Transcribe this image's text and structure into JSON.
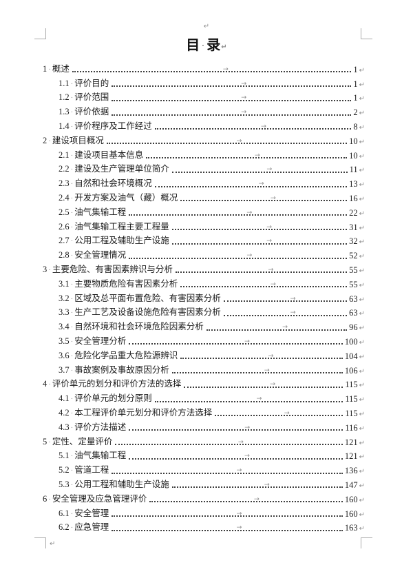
{
  "title": {
    "left": "目",
    "right": "录"
  },
  "marks": {
    "pilcrow": "↵",
    "tab_arrow": "→",
    "space_dot": "·"
  },
  "colors": {
    "text": "#1c1c1c",
    "formatting_marks": "#8f8f8f",
    "crop_marks": "#ababab",
    "leader_dots": "#3e3e3e",
    "background": "#ffffff"
  },
  "toc": [
    {
      "num": "1",
      "label": "概述",
      "page": "1",
      "level": 1
    },
    {
      "num": "1.1",
      "label": "评价目的",
      "page": "1",
      "level": 2
    },
    {
      "num": "1.2",
      "label": "评价范围",
      "page": "1",
      "level": 2
    },
    {
      "num": "1.3",
      "label": "评价依据",
      "page": "2",
      "level": 2
    },
    {
      "num": "1.4",
      "label": "评价程序及工作经过",
      "page": "8",
      "level": 2
    },
    {
      "num": "2",
      "label": "建设项目概况",
      "page": "10",
      "level": 1
    },
    {
      "num": "2.1",
      "label": "建设项目基本信息",
      "page": "10",
      "level": 2
    },
    {
      "num": "2.2",
      "label": "建设及生产管理单位简介",
      "page": "11",
      "level": 2
    },
    {
      "num": "2.3",
      "label": "自然和社会环境概况",
      "page": "13",
      "level": 2
    },
    {
      "num": "2.4",
      "label": "开发方案及油气（藏）概况",
      "page": "16",
      "level": 2
    },
    {
      "num": "2.5",
      "label": "油气集输工程",
      "page": "22",
      "level": 2
    },
    {
      "num": "2.6",
      "label": "油气集输工程主要工程量",
      "page": "31",
      "level": 2
    },
    {
      "num": "2.7",
      "label": "公用工程及辅助生产设施",
      "page": "32",
      "level": 2
    },
    {
      "num": "2.8",
      "label": "安全管理情况",
      "page": "52",
      "level": 2
    },
    {
      "num": "3",
      "label": "主要危险、有害因素辨识与分析",
      "page": "55",
      "level": 1
    },
    {
      "num": "3.1",
      "label": "主要物质危险有害因素分析",
      "page": "55",
      "level": 2
    },
    {
      "num": "3.2",
      "label": "区域及总平面布置危险、有害因素分析",
      "page": "63",
      "level": 2
    },
    {
      "num": "3.3",
      "label": "生产工艺及设备设施危险有害因素分析",
      "page": "63",
      "level": 2
    },
    {
      "num": "3.4",
      "label": "自然环境和社会环境危险因素分析",
      "page": "96",
      "level": 2
    },
    {
      "num": "3.5",
      "label": "安全管理分析",
      "page": "100",
      "level": 2
    },
    {
      "num": "3.6",
      "label": "危险化学品重大危险源辨识",
      "page": "104",
      "level": 2
    },
    {
      "num": "3.7",
      "label": "事故案例及事故原因分析",
      "page": "106",
      "level": 2
    },
    {
      "num": "4",
      "label": "评价单元的划分和评价方法的选择",
      "page": "115",
      "level": 1
    },
    {
      "num": "4.1",
      "label": "评价单元的划分原则",
      "page": "115",
      "level": 2
    },
    {
      "num": "4.2",
      "label": "本工程评价单元划分和评价方法选择",
      "page": "115",
      "level": 2
    },
    {
      "num": "4.3",
      "label": "评价方法描述",
      "page": "116",
      "level": 2
    },
    {
      "num": "5",
      "label": "定性、定量评价",
      "page": "121",
      "level": 1
    },
    {
      "num": "5.1",
      "label": "油气集输工程",
      "page": "121",
      "level": 2
    },
    {
      "num": "5.2",
      "label": "管道工程",
      "page": "136",
      "level": 2
    },
    {
      "num": "5.3",
      "label": "公用工程和辅助生产设施",
      "page": "147",
      "level": 2
    },
    {
      "num": "6",
      "label": "安全管理及应急管理评价",
      "page": "160",
      "level": 1
    },
    {
      "num": "6.1",
      "label": "安全管理",
      "page": "160",
      "level": 2
    },
    {
      "num": "6.2",
      "label": "应急管理",
      "page": "163",
      "level": 2
    }
  ]
}
